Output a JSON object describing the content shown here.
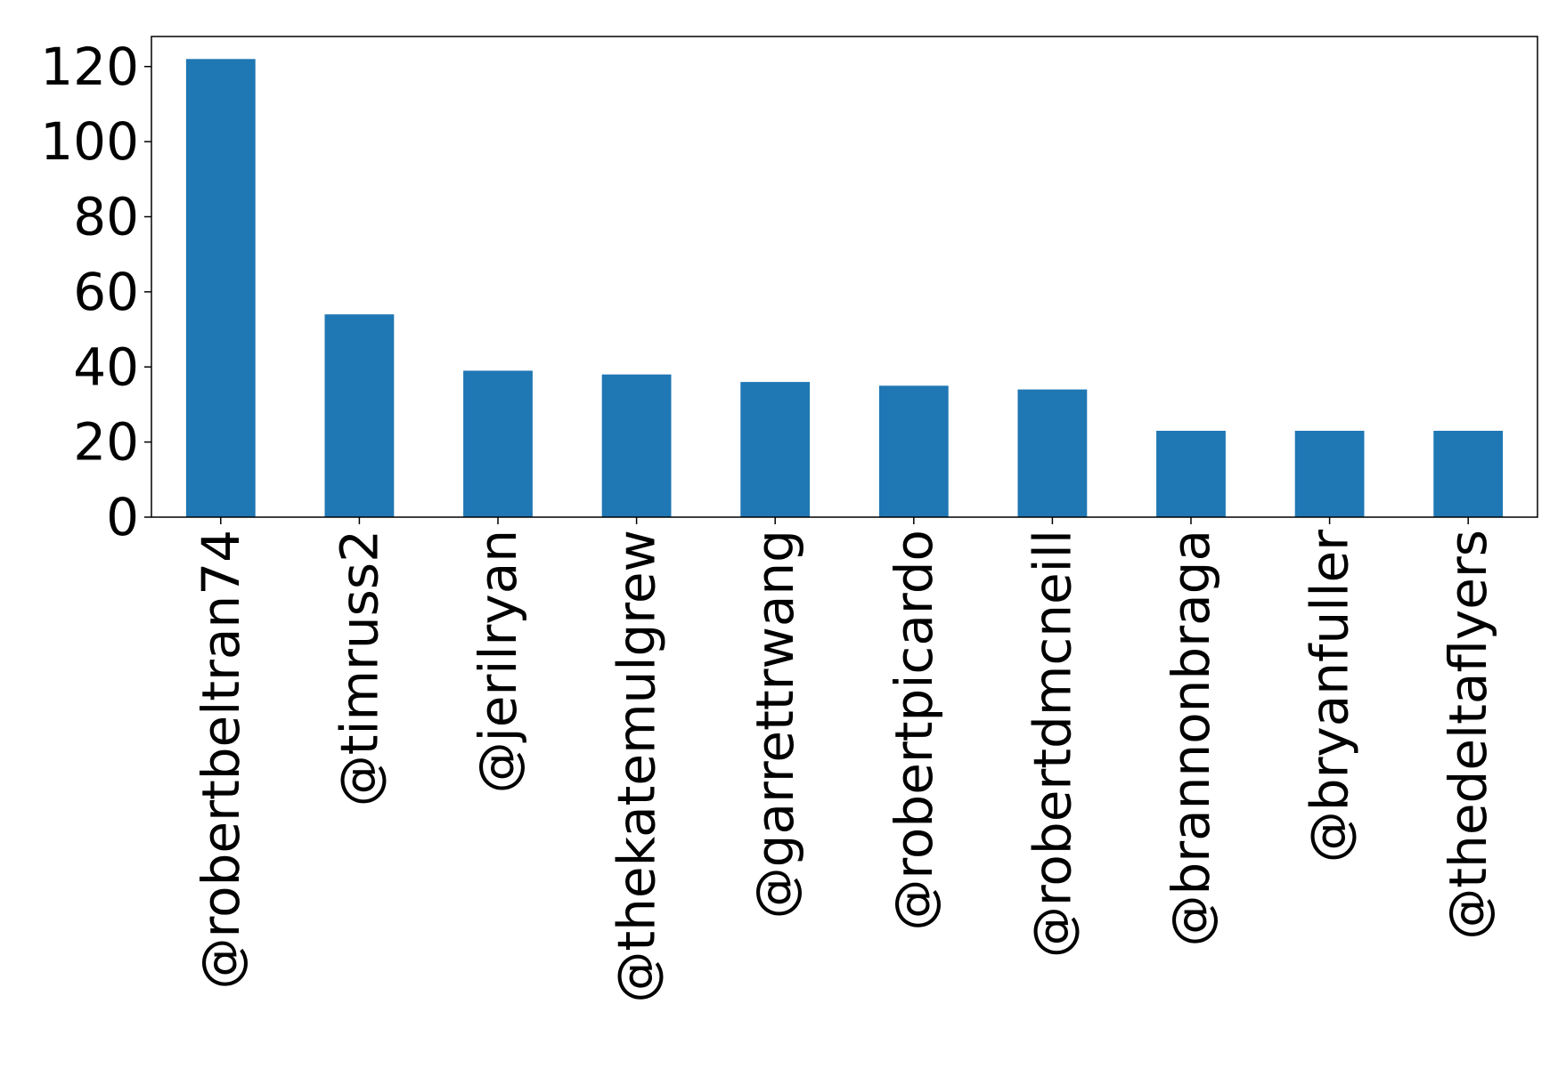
{
  "chart_data": {
    "type": "bar",
    "title": "",
    "xlabel": "",
    "ylabel": "",
    "categories": [
      "@robertbeltran74",
      "@timruss2",
      "@jerilryan",
      "@thekatemulgrew",
      "@garrettrwang",
      "@robertpicardo",
      "@robertdmcneill",
      "@brannonbraga",
      "@bryanfuller",
      "@thedeltaflyers"
    ],
    "values": [
      122,
      54,
      39,
      38,
      36,
      35,
      34,
      23,
      23,
      23
    ],
    "ylim": [
      0,
      128
    ],
    "yticks": [
      0,
      20,
      40,
      60,
      80,
      100,
      120
    ],
    "ytick_labels": [
      "0",
      "20",
      "40",
      "60",
      "80",
      "100",
      "120"
    ],
    "grid": false,
    "legend": "none",
    "bar_color": "#1f77b4"
  }
}
